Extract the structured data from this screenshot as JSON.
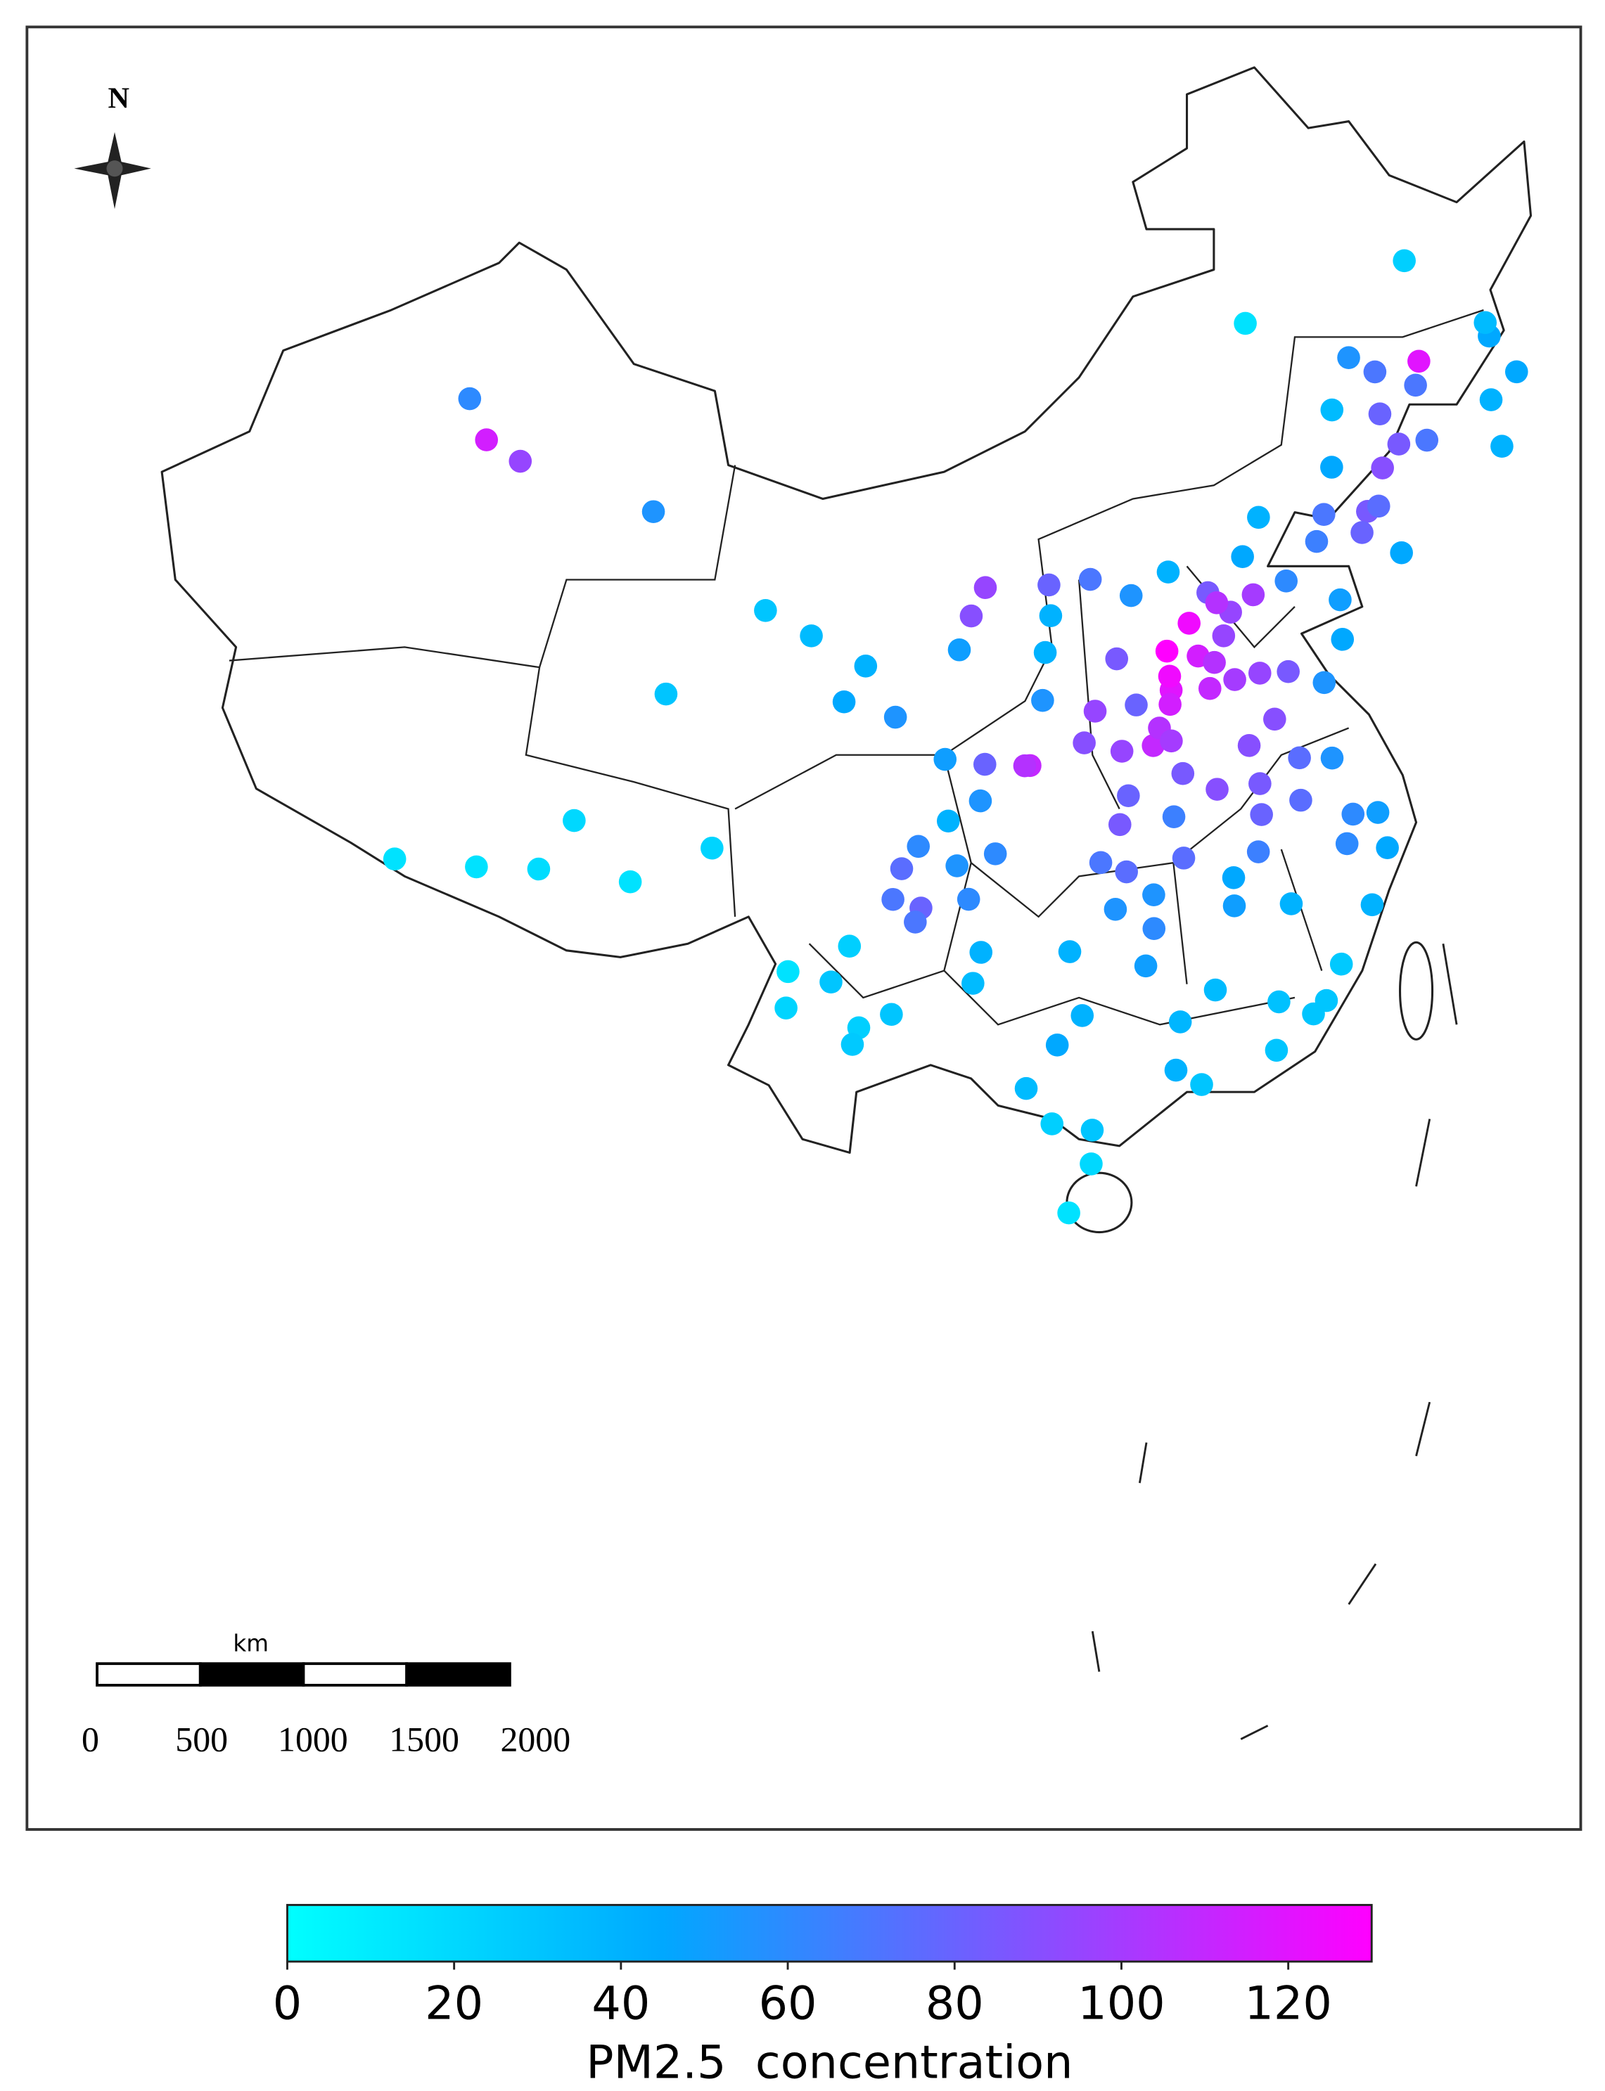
{
  "north": "N",
  "scale_bar": {
    "unit": "km",
    "ticks": [
      0,
      500,
      1000,
      1500,
      2000
    ]
  },
  "chart_data": {
    "type": "map",
    "colorbar": {
      "label": "PM2.5  concentration",
      "lim": [
        0,
        130
      ],
      "ticks": [
        0,
        20,
        40,
        60,
        80,
        100,
        120
      ],
      "colormap": [
        {
          "value": 0,
          "color": "#00ffff"
        },
        {
          "value": 45,
          "color": "#00a8ff"
        },
        {
          "value": 130,
          "color": "#ff00ff"
        }
      ]
    },
    "stations": [
      [
        84.9,
        45.6,
        60
      ],
      [
        86.0,
        44.3,
        115
      ],
      [
        87.6,
        43.8,
        95
      ],
      [
        93.5,
        42.8,
        55
      ],
      [
        91.1,
        29.6,
        18
      ],
      [
        88.9,
        29.3,
        15
      ],
      [
        94.4,
        29.6,
        15
      ],
      [
        92.1,
        31.5,
        20
      ],
      [
        86.0,
        29.0,
        15
      ],
      [
        97.2,
        31.1,
        22
      ],
      [
        101.8,
        36.6,
        45
      ],
      [
        94.9,
        36.4,
        30
      ],
      [
        103.8,
        36.1,
        55
      ],
      [
        98.5,
        39.7,
        30
      ],
      [
        100.4,
        38.9,
        35
      ],
      [
        105.7,
        34.6,
        50
      ],
      [
        102.6,
        37.9,
        40
      ],
      [
        106.3,
        38.5,
        50
      ],
      [
        111.7,
        40.8,
        70
      ],
      [
        110.0,
        40.7,
        80
      ],
      [
        110.0,
        39.6,
        40
      ],
      [
        119.7,
        49.2,
        15
      ],
      [
        118.9,
        42.3,
        40
      ],
      [
        122.3,
        43.6,
        45
      ],
      [
        106.8,
        39.7,
        90
      ],
      [
        107.4,
        40.7,
        95
      ],
      [
        126.6,
        45.8,
        70
      ],
      [
        124.0,
        47.3,
        55
      ],
      [
        129.6,
        44.6,
        40
      ],
      [
        130.3,
        46.8,
        45
      ],
      [
        125.0,
        46.6,
        70
      ],
      [
        127.0,
        46.6,
        120
      ],
      [
        127.5,
        50.2,
        25
      ],
      [
        130.3,
        47.3,
        35
      ],
      [
        131.0,
        45.3,
        45
      ],
      [
        125.3,
        43.9,
        85
      ],
      [
        126.5,
        43.8,
        70
      ],
      [
        124.4,
        43.2,
        90
      ],
      [
        124.8,
        45.1,
        80
      ],
      [
        122.8,
        45.6,
        35
      ],
      [
        129.5,
        42.9,
        40
      ],
      [
        123.4,
        41.8,
        85
      ],
      [
        121.6,
        38.9,
        50
      ],
      [
        123.0,
        41.1,
        80
      ],
      [
        123.9,
        41.9,
        75
      ],
      [
        121.1,
        41.1,
        65
      ],
      [
        124.4,
        40.1,
        45
      ],
      [
        121.6,
        42.0,
        70
      ],
      [
        116.4,
        39.9,
        85
      ],
      [
        117.2,
        39.1,
        95
      ],
      [
        114.5,
        38.0,
        130
      ],
      [
        115.5,
        38.9,
        125
      ],
      [
        118.2,
        39.6,
        100
      ],
      [
        114.5,
        36.6,
        120
      ],
      [
        114.5,
        37.1,
        125
      ],
      [
        115.7,
        37.7,
        115
      ],
      [
        116.8,
        38.3,
        95
      ],
      [
        116.7,
        39.5,
        105
      ],
      [
        114.9,
        40.8,
        40
      ],
      [
        118.0,
        41.0,
        45
      ],
      [
        119.6,
        39.9,
        60
      ],
      [
        112.5,
        37.9,
        85
      ],
      [
        113.3,
        40.1,
        55
      ],
      [
        111.5,
        36.1,
        95
      ],
      [
        111.0,
        35.0,
        90
      ],
      [
        113.1,
        36.2,
        80
      ],
      [
        108.9,
        34.3,
        110
      ],
      [
        108.7,
        34.3,
        105
      ],
      [
        107.2,
        34.4,
        80
      ],
      [
        109.5,
        36.6,
        55
      ],
      [
        109.7,
        38.3,
        40
      ],
      [
        107.0,
        33.1,
        55
      ],
      [
        113.6,
        34.7,
        110
      ],
      [
        112.4,
        34.6,
        95
      ],
      [
        114.4,
        36.1,
        115
      ],
      [
        113.9,
        35.3,
        105
      ],
      [
        114.3,
        34.8,
        100
      ],
      [
        112.5,
        33.0,
        80
      ],
      [
        114.1,
        32.1,
        65
      ],
      [
        114.6,
        33.6,
        85
      ],
      [
        117.0,
        36.7,
        100
      ],
      [
        120.4,
        36.1,
        55
      ],
      [
        118.0,
        36.8,
        95
      ],
      [
        119.1,
        36.7,
        85
      ],
      [
        118.3,
        35.1,
        90
      ],
      [
        116.0,
        36.5,
        110
      ],
      [
        116.3,
        37.4,
        105
      ],
      [
        121.4,
        37.5,
        45
      ],
      [
        118.8,
        32.1,
        75
      ],
      [
        117.2,
        34.3,
        90
      ],
      [
        120.6,
        31.3,
        60
      ],
      [
        121.5,
        31.2,
        50
      ],
      [
        120.2,
        30.3,
        60
      ],
      [
        121.6,
        29.9,
        45
      ],
      [
        120.7,
        28.0,
        40
      ],
      [
        117.3,
        31.8,
        80
      ],
      [
        117.4,
        32.9,
        85
      ],
      [
        115.8,
        32.9,
        90
      ],
      [
        117.0,
        30.5,
        65
      ],
      [
        119.0,
        33.6,
        75
      ],
      [
        120.2,
        33.4,
        55
      ],
      [
        114.3,
        30.6,
        75
      ],
      [
        111.3,
        30.7,
        70
      ],
      [
        112.1,
        32.0,
        85
      ],
      [
        112.2,
        30.3,
        75
      ],
      [
        113.0,
        28.2,
        60
      ],
      [
        113.1,
        29.4,
        55
      ],
      [
        111.7,
        29.0,
        55
      ],
      [
        112.6,
        26.9,
        50
      ],
      [
        110.0,
        27.6,
        40
      ],
      [
        115.9,
        28.7,
        50
      ],
      [
        116.0,
        29.7,
        45
      ],
      [
        114.9,
        25.8,
        35
      ],
      [
        117.9,
        28.5,
        40
      ],
      [
        104.1,
        30.7,
        75
      ],
      [
        106.5,
        29.6,
        60
      ],
      [
        104.8,
        29.3,
        80
      ],
      [
        104.7,
        31.5,
        60
      ],
      [
        106.1,
        30.8,
        55
      ],
      [
        104.6,
        28.8,
        70
      ],
      [
        107.5,
        31.2,
        60
      ],
      [
        103.8,
        29.6,
        70
      ],
      [
        105.8,
        32.4,
        40
      ],
      [
        101.7,
        26.6,
        30
      ],
      [
        102.3,
        27.9,
        25
      ],
      [
        102.7,
        25.0,
        25
      ],
      [
        103.8,
        25.5,
        30
      ],
      [
        100.2,
        25.6,
        22
      ],
      [
        100.2,
        26.9,
        15
      ],
      [
        102.5,
        24.4,
        28
      ],
      [
        106.6,
        26.6,
        35
      ],
      [
        106.9,
        27.7,
        40
      ],
      [
        108.3,
        22.8,
        35
      ],
      [
        109.4,
        24.3,
        45
      ],
      [
        110.3,
        25.3,
        40
      ],
      [
        109.1,
        21.5,
        25
      ],
      [
        113.3,
        23.1,
        40
      ],
      [
        114.1,
        22.5,
        30
      ],
      [
        116.7,
        23.4,
        30
      ],
      [
        110.4,
        21.2,
        30
      ],
      [
        113.6,
        24.8,
        38
      ],
      [
        119.3,
        26.1,
        28
      ],
      [
        118.1,
        24.5,
        30
      ],
      [
        118.6,
        24.9,
        30
      ],
      [
        117.0,
        25.1,
        32
      ],
      [
        110.3,
        20.0,
        20
      ],
      [
        109.5,
        18.3,
        15
      ]
    ]
  }
}
